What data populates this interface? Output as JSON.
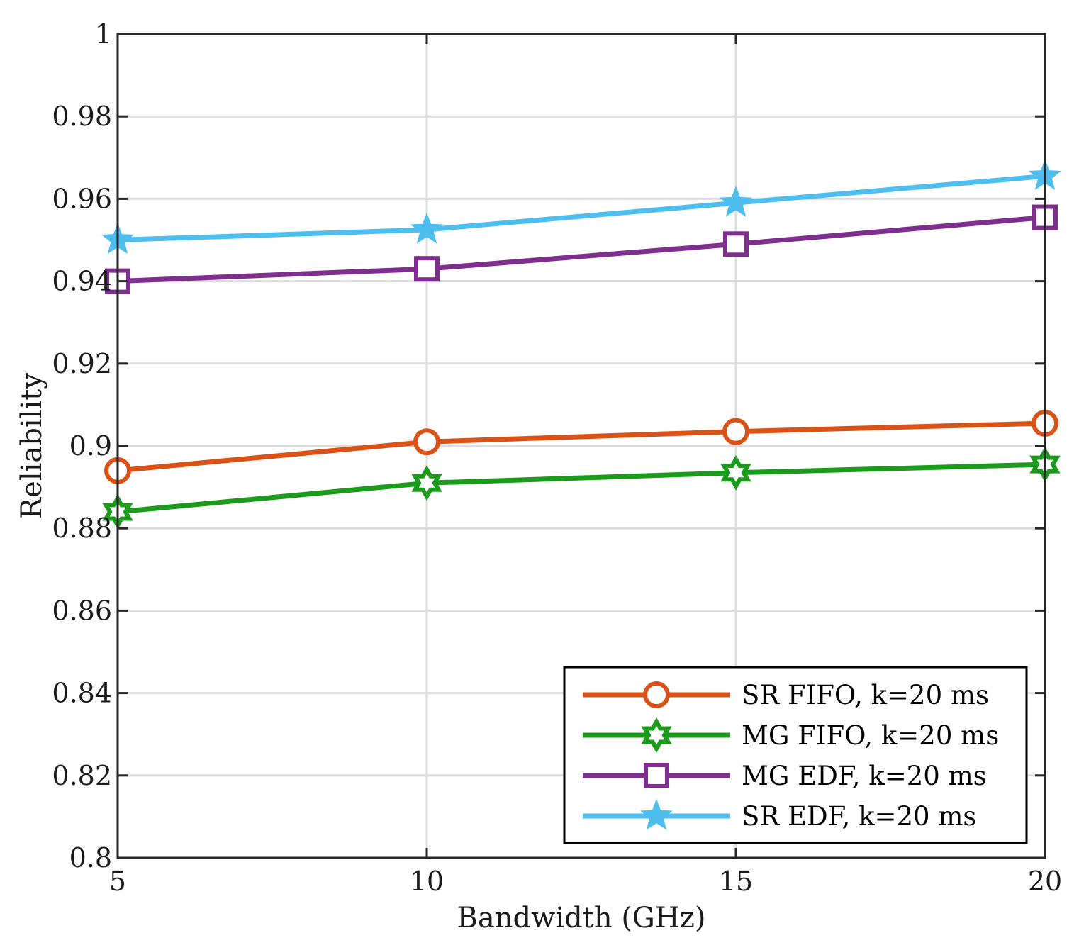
{
  "chart_data": {
    "type": "line",
    "title": "",
    "xlabel": "Bandwidth (GHz)",
    "ylabel": "Reliability",
    "x": [
      5,
      10,
      15,
      20
    ],
    "xlim": [
      5,
      20
    ],
    "ylim": [
      0.8,
      1.0
    ],
    "xticks": [
      5,
      10,
      15,
      20
    ],
    "xtick_labels": [
      "5",
      "10",
      "15",
      "20"
    ],
    "yticks": [
      0.8,
      0.82,
      0.84,
      0.86,
      0.88,
      0.9,
      0.92,
      0.94,
      0.96,
      0.98,
      1.0
    ],
    "ytick_labels": [
      "0.8",
      "0.82",
      "0.84",
      "0.86",
      "0.88",
      "0.9",
      "0.92",
      "0.94",
      "0.96",
      "0.98",
      "1"
    ],
    "grid": true,
    "legend_position": "bottom-right",
    "series": [
      {
        "name": "SR FIFO, k=20 ms",
        "color": "#D95319",
        "marker": "circle",
        "values": [
          0.894,
          0.901,
          0.9035,
          0.9055
        ]
      },
      {
        "name": "MG FIFO, k=20 ms",
        "color": "#1B9A1B",
        "marker": "hexagram",
        "values": [
          0.884,
          0.891,
          0.8935,
          0.8955
        ]
      },
      {
        "name": "MG EDF, k=20 ms",
        "color": "#7E2F8E",
        "marker": "square",
        "values": [
          0.94,
          0.943,
          0.949,
          0.9555
        ]
      },
      {
        "name": "SR EDF, k=20 ms",
        "color": "#4DBEEE",
        "marker": "pentagram",
        "values": [
          0.95,
          0.9525,
          0.959,
          0.9655
        ]
      }
    ]
  }
}
